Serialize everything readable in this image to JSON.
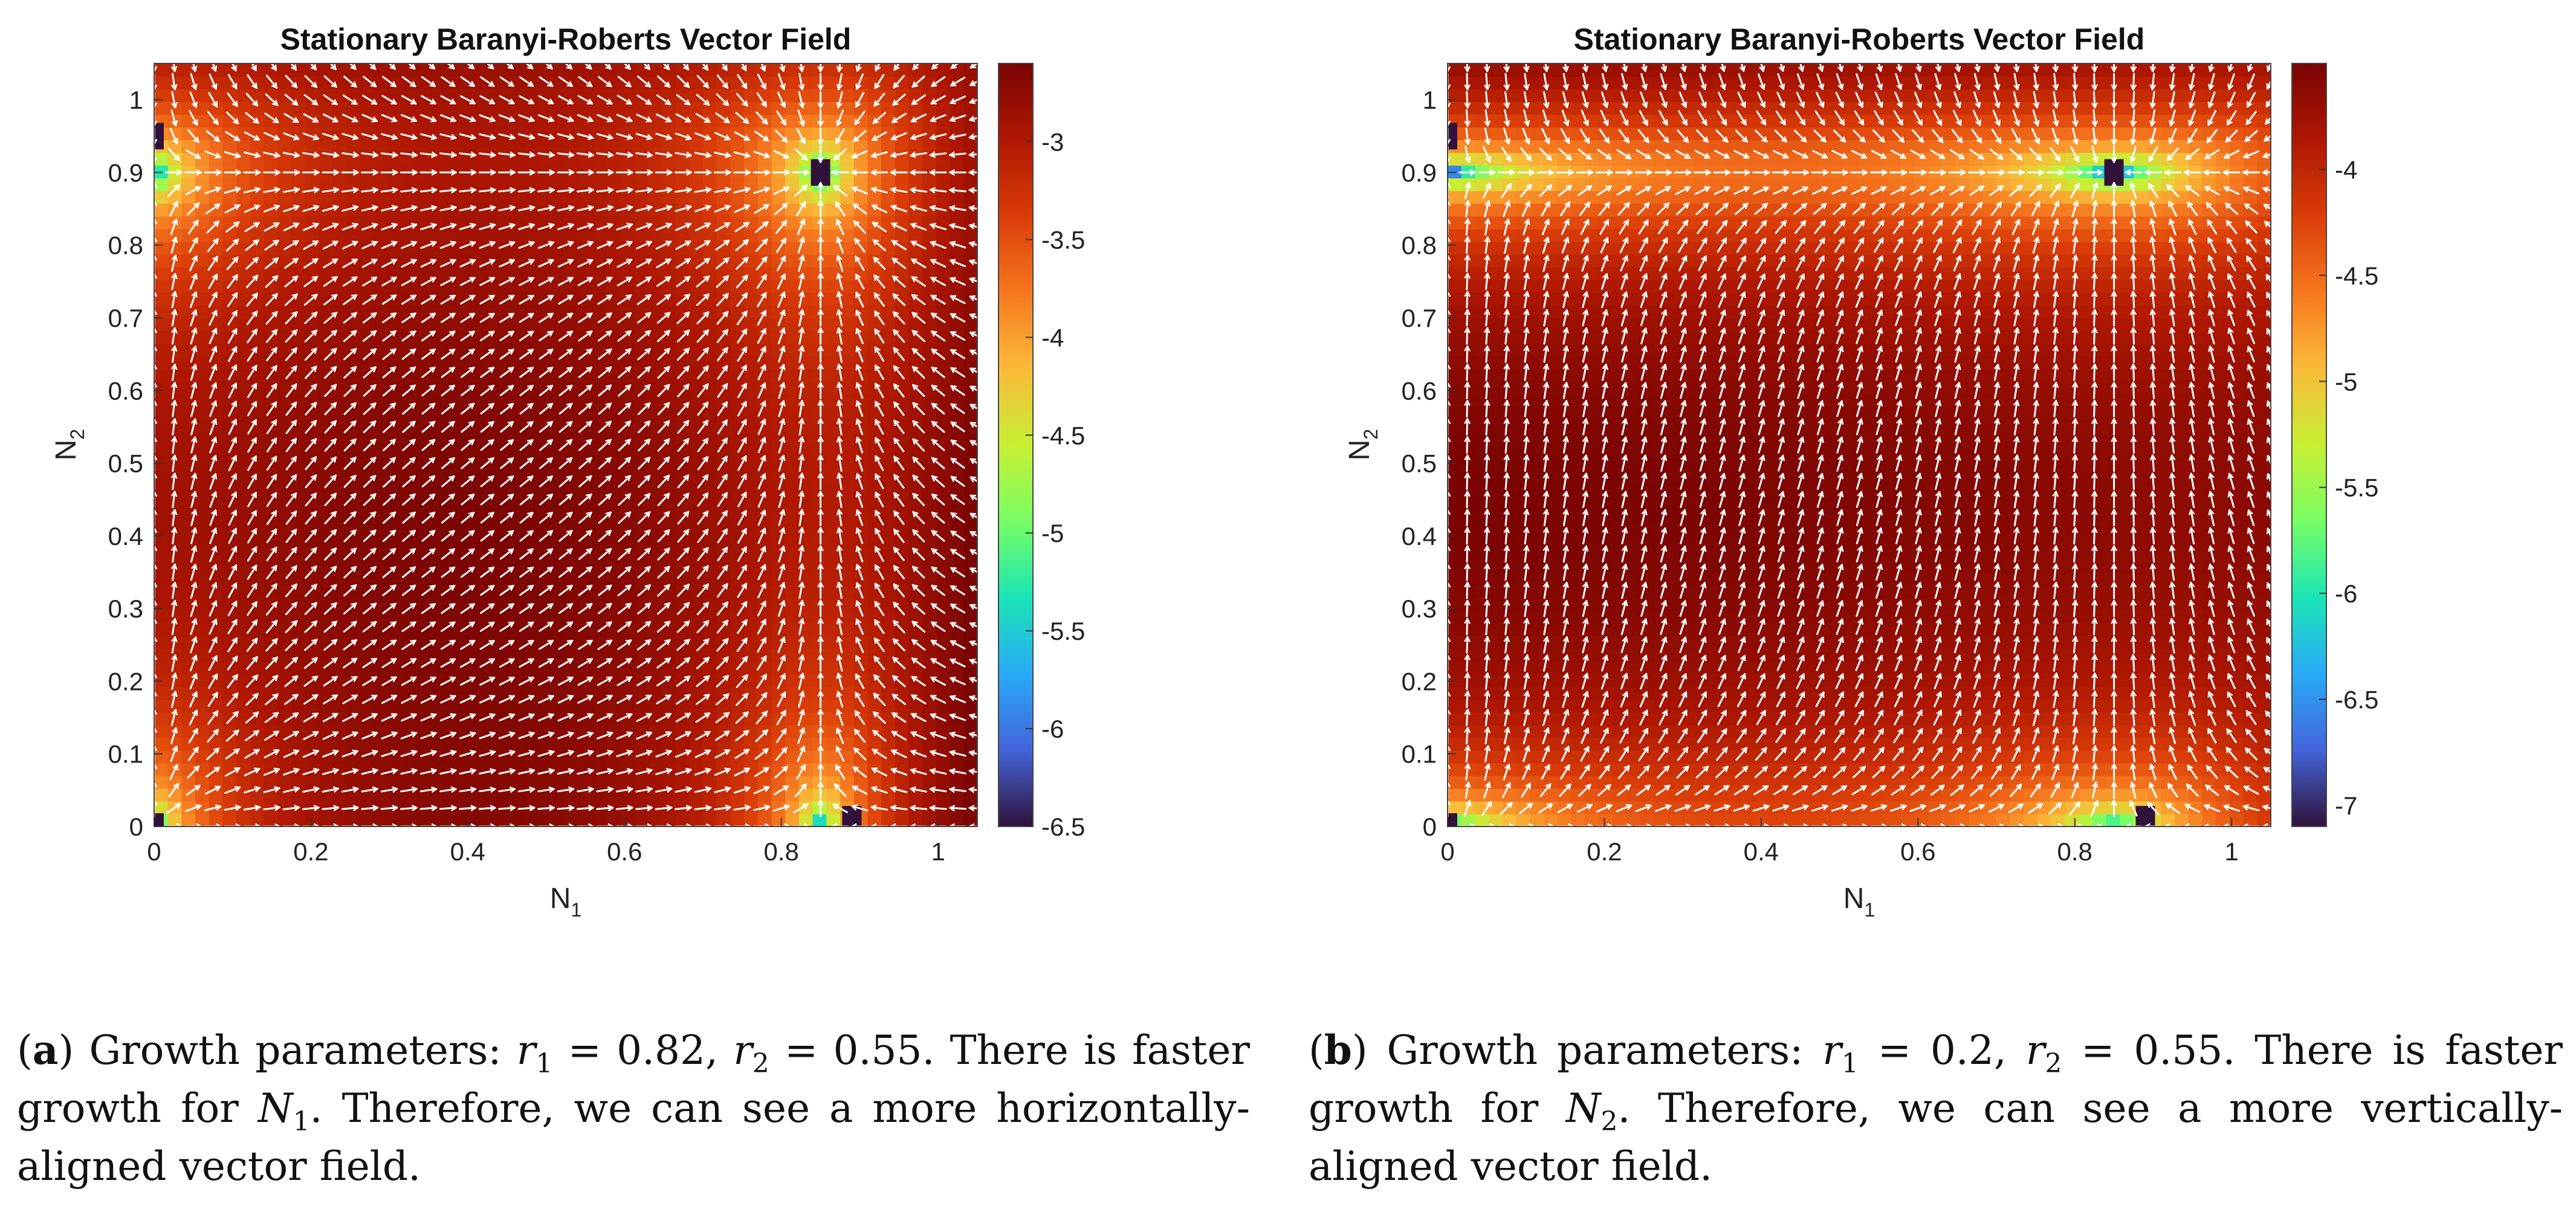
{
  "panels": [
    {
      "id": "a",
      "chart_data": {
        "type": "heatmap",
        "title": "Stationary Baranyi-Roberts Vector Field",
        "xlabel_main": "N",
        "xlabel_sub": "1",
        "ylabel_main": "N",
        "ylabel_sub": "2",
        "xlim": [
          0,
          1.05
        ],
        "ylim": [
          0,
          1.05
        ],
        "xticks": [
          "0",
          "0.2",
          "0.4",
          "0.6",
          "0.8",
          "1"
        ],
        "yticks": [
          "0",
          "0.1",
          "0.2",
          "0.3",
          "0.4",
          "0.5",
          "0.6",
          "0.7",
          "0.8",
          "0.9",
          "1"
        ],
        "colorbar_range": [
          -6.5,
          -2.6
        ],
        "colorbar_ticks": [
          "-3",
          "-3.5",
          "-4",
          "-4.5",
          "-5",
          "-5.5",
          "-6",
          "-6.5"
        ],
        "colorbar_tick_values": [
          -3,
          -3.5,
          -4,
          -4.5,
          -5,
          -5.5,
          -6,
          -6.5
        ],
        "params": {
          "r1": 0.82,
          "r2": 0.55
        },
        "equilibria": [
          [
            0,
            0.95
          ],
          [
            0.85,
            0.9
          ],
          [
            0.89,
            0.01
          ],
          [
            0,
            0
          ]
        ]
      },
      "caption": {
        "label": "a",
        "prefix": " Growth parameters: ",
        "r1_value": "0.82",
        "r2_value": "0.55",
        "mid": ". There is faster growth for ",
        "var": "N",
        "var_sub": "1",
        "rest": ". Therefore, we can see a more horizontally-aligned vector field."
      }
    },
    {
      "id": "b",
      "chart_data": {
        "type": "heatmap",
        "title": "Stationary Baranyi-Roberts Vector Field",
        "xlabel_main": "N",
        "xlabel_sub": "1",
        "ylabel_main": "N",
        "ylabel_sub": "2",
        "xlim": [
          0,
          1.05
        ],
        "ylim": [
          0,
          1.05
        ],
        "xticks": [
          "0",
          "0.2",
          "0.4",
          "0.6",
          "0.8",
          "1"
        ],
        "yticks": [
          "0",
          "0.1",
          "0.2",
          "0.3",
          "0.4",
          "0.5",
          "0.6",
          "0.7",
          "0.8",
          "0.9",
          "1"
        ],
        "colorbar_range": [
          -7.1,
          -3.5
        ],
        "colorbar_ticks": [
          "-4",
          "-4.5",
          "-5",
          "-5.5",
          "-6",
          "-6.5",
          "-7"
        ],
        "colorbar_tick_values": [
          -4,
          -4.5,
          -5,
          -5.5,
          -6,
          -6.5,
          -7
        ],
        "params": {
          "r1": 0.2,
          "r2": 0.55
        },
        "equilibria": [
          [
            0,
            0.95
          ],
          [
            0.85,
            0.9
          ],
          [
            0.89,
            0.01
          ],
          [
            0,
            0
          ]
        ]
      },
      "caption": {
        "label": "b",
        "prefix": " Growth parameters: ",
        "r1_value": "0.2",
        "r2_value": "0.55",
        "mid": ". There is faster growth for ",
        "var": "N",
        "var_sub": "2",
        "rest": ". Therefore, we can see a more vertically-aligned vector field."
      }
    }
  ]
}
